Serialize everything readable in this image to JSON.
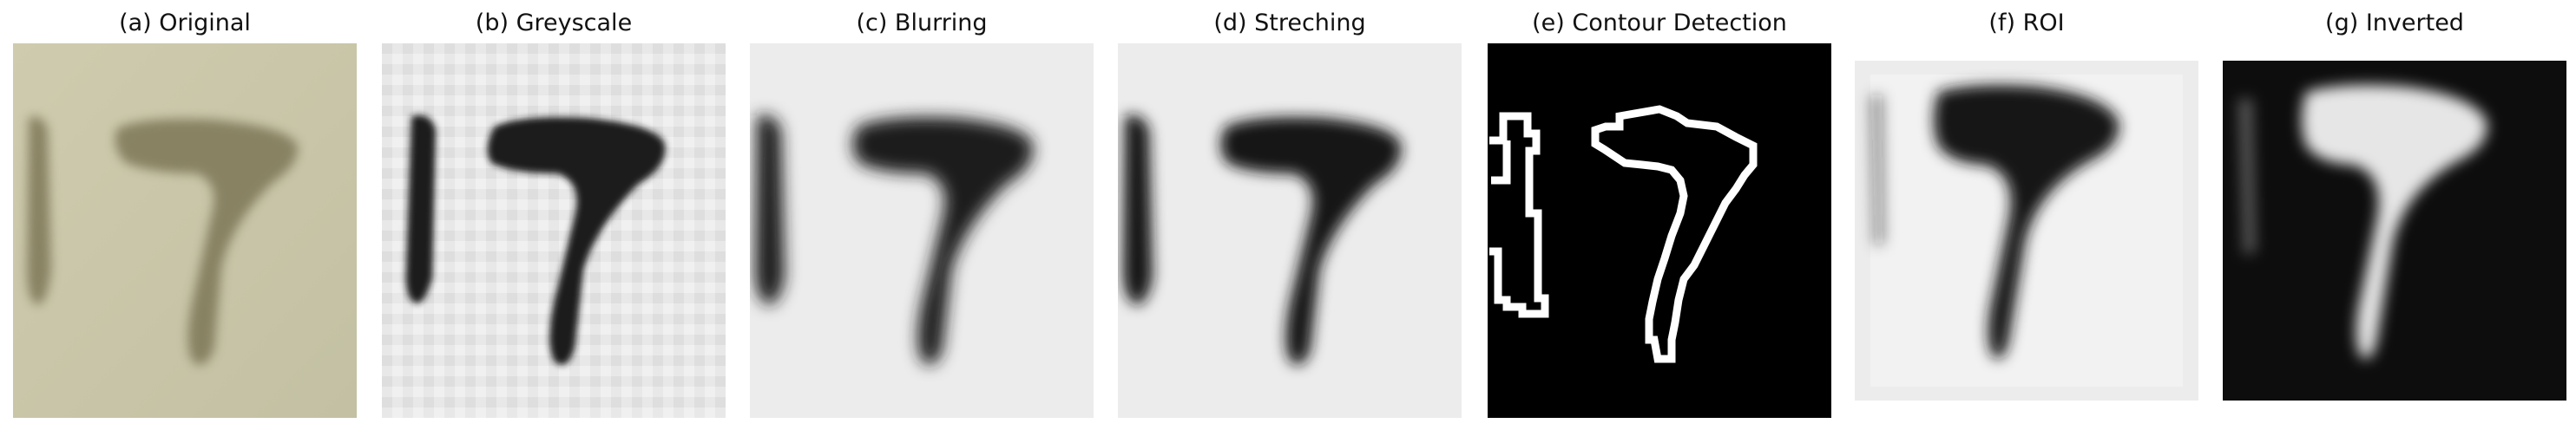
{
  "panels": [
    {
      "title": "(a) Original"
    },
    {
      "title": "(b) Greyscale"
    },
    {
      "title": "(c) Blurring"
    },
    {
      "title": "(d) Streching"
    },
    {
      "title": "(e) Contour Detection"
    },
    {
      "title": "(f) ROI"
    },
    {
      "title": "(g) Inverted"
    }
  ],
  "colors": {
    "original_bg": "#c9c5a7",
    "original_ink": "#7d7756",
    "grey_bg": "#e6e6e6",
    "grey_ink": "#1a1a1a",
    "contour_bg": "#000000",
    "contour_line": "#ffffff",
    "inverted_bg": "#0d0d0d",
    "inverted_ink": "#e8e8e8"
  }
}
